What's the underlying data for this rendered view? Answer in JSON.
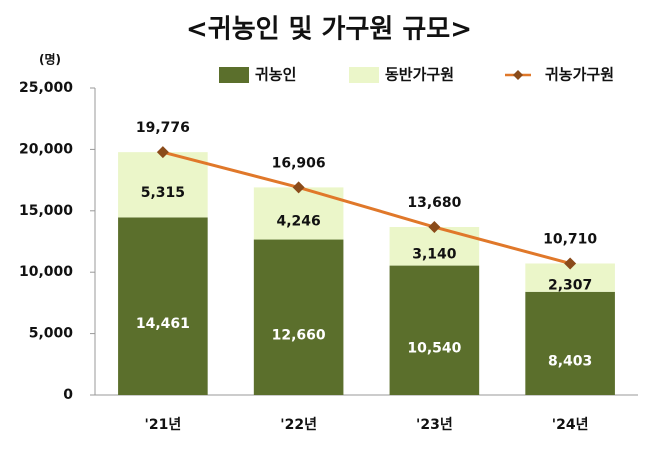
{
  "chart_data": {
    "type": "bar",
    "stacked": true,
    "title": "<귀농인 및 가구원 규모>",
    "y_unit": "(명)",
    "categories": [
      "'21년",
      "'22년",
      "'23년",
      "'24년"
    ],
    "series": [
      {
        "name": "귀농인",
        "type": "bar",
        "color": "#5b6f2c",
        "label_color": "#ffffff",
        "values": [
          14461,
          12660,
          10540,
          8403
        ],
        "value_labels": [
          "14,461",
          "12,660",
          "10,540",
          "8,403"
        ]
      },
      {
        "name": "동반가구원",
        "type": "bar",
        "color": "#ebf6c9",
        "label_color": "#111111",
        "values": [
          5315,
          4246,
          3140,
          2307
        ],
        "value_labels": [
          "5,315",
          "4,246",
          "3,140",
          "2,307"
        ]
      },
      {
        "name": "귀농가구원",
        "type": "line",
        "color": "#e0782a",
        "marker_color": "#8a4b1a",
        "label_color": "#111111",
        "values": [
          19776,
          16906,
          13680,
          10710
        ],
        "value_labels": [
          "19,776",
          "16,906",
          "13,680",
          "10,710"
        ]
      }
    ],
    "ylim": [
      0,
      25000
    ],
    "yticks": [
      0,
      {
        "value": 5000,
        "label": "5,000"
      },
      {
        "value": 10000,
        "label": "10,000"
      },
      {
        "value": 15000,
        "label": "15,000"
      },
      {
        "value": 20000,
        "label": "20,000"
      },
      {
        "value": 25000,
        "label": "25,000"
      }
    ],
    "grid": false
  }
}
